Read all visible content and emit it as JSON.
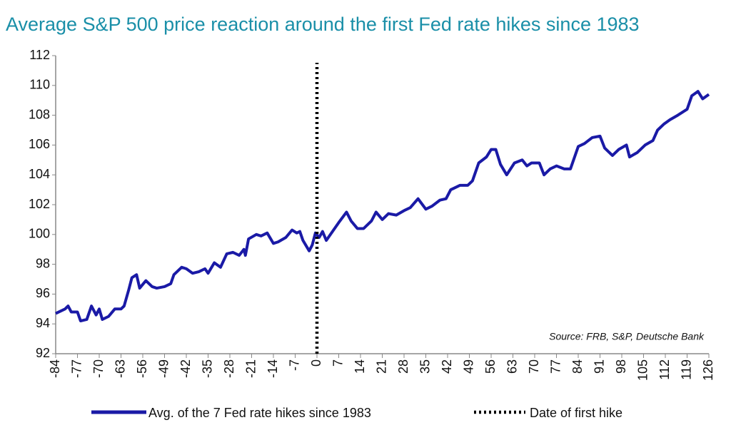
{
  "chart_data": {
    "type": "line",
    "title": "Average S&P 500 price reaction around the first Fed rate hikes since 1983",
    "annotation": "Source: FRB, S&P, Deutsche Bank",
    "x": [
      -84,
      -81,
      -80,
      -79,
      -77,
      -76,
      -74,
      -72.5,
      -71,
      -70,
      -69,
      -67,
      -65,
      -63,
      -62,
      -60.5,
      -59.5,
      -58,
      -57,
      -55,
      -53,
      -51.5,
      -49,
      -47,
      -46,
      -43.5,
      -42,
      -40,
      -38,
      -36,
      -35,
      -33,
      -31,
      -29,
      -27,
      -25,
      -23.5,
      -23,
      -22,
      -19.5,
      -18,
      -16,
      -14,
      -12.5,
      -10,
      -8,
      -6.5,
      -5.5,
      -4.5,
      -2.5,
      -1.5,
      -0.5,
      0.7,
      1.8,
      3,
      5,
      7,
      9.5,
      11,
      13,
      15,
      17.5,
      19,
      21,
      23,
      25.5,
      28,
      30,
      32.5,
      35,
      37,
      39.5,
      41.5,
      43,
      46,
      48.5,
      50,
      52,
      54.5,
      56,
      57.5,
      59,
      61,
      63.5,
      66,
      67.5,
      69,
      71.5,
      73,
      75,
      77,
      79.5,
      81.5,
      84,
      86,
      88.5,
      91,
      92.5,
      95,
      97,
      99.5,
      100.5,
      103,
      105.5,
      108,
      109.5,
      111.5,
      113.5,
      116,
      119,
      120.5,
      122.5,
      124,
      126
    ],
    "series": [
      {
        "name": "Avg. of the 7 Fed rate hikes since 1983",
        "color": "#1a1aa6",
        "values": [
          94.7,
          95.0,
          95.2,
          94.8,
          94.8,
          94.2,
          94.3,
          95.2,
          94.6,
          95.0,
          94.3,
          94.5,
          95.0,
          95.0,
          95.2,
          96.3,
          97.1,
          97.3,
          96.4,
          96.9,
          96.5,
          96.4,
          96.5,
          96.7,
          97.3,
          97.8,
          97.7,
          97.4,
          97.5,
          97.7,
          97.4,
          98.1,
          97.8,
          98.7,
          98.8,
          98.6,
          99.0,
          98.6,
          99.7,
          100.0,
          99.9,
          100.1,
          99.4,
          99.5,
          99.8,
          100.3,
          100.1,
          100.2,
          99.6,
          98.9,
          99.3,
          100.1,
          99.8,
          100.2,
          99.6,
          100.2,
          100.8,
          101.5,
          100.9,
          100.4,
          100.4,
          100.9,
          101.5,
          101.0,
          101.4,
          101.3,
          101.6,
          101.8,
          102.4,
          101.7,
          101.9,
          102.3,
          102.4,
          103.0,
          103.3,
          103.3,
          103.6,
          104.8,
          105.2,
          105.7,
          105.7,
          104.7,
          104.0,
          104.8,
          105.0,
          104.6,
          104.8,
          104.8,
          104.0,
          104.4,
          104.6,
          104.4,
          104.4,
          105.9,
          106.1,
          106.5,
          106.6,
          105.8,
          105.3,
          105.7,
          106.0,
          105.2,
          105.5,
          106.0,
          106.3,
          107.0,
          107.4,
          107.7,
          108.0,
          108.4,
          109.3,
          109.6,
          109.1,
          109.4
        ]
      }
    ],
    "vline": {
      "name": "Date of first hike",
      "x": 0,
      "color": "#000000"
    },
    "xlim": [
      -84,
      126
    ],
    "xticks": [
      -84,
      -77,
      -70,
      -63,
      -56,
      -49,
      -42,
      -35,
      -28,
      -21,
      -14,
      -7,
      0,
      7,
      14,
      21,
      28,
      35,
      42,
      49,
      56,
      63,
      70,
      77,
      84,
      91,
      98,
      105,
      112,
      119,
      126
    ],
    "ylim": [
      92,
      112
    ],
    "yticks": [
      92,
      94,
      96,
      98,
      100,
      102,
      104,
      106,
      108,
      110,
      112
    ]
  }
}
